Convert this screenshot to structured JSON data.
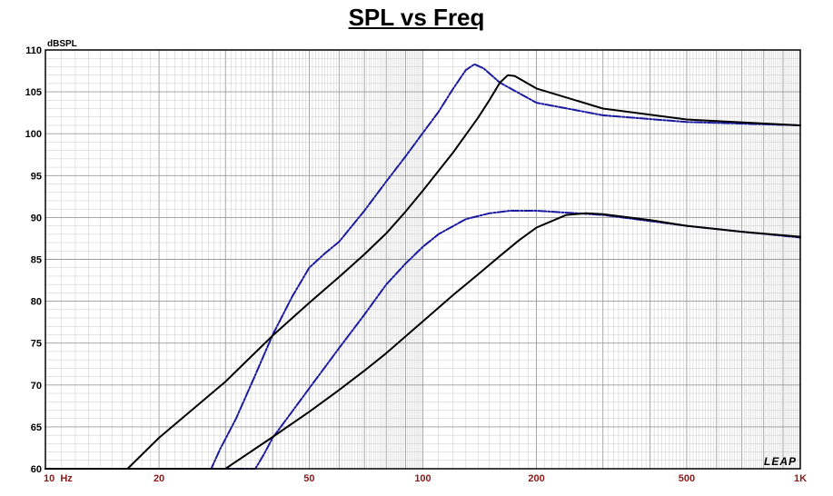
{
  "chart_data": {
    "type": "line",
    "title": "SPL vs Freq",
    "ylabel": "dBSPL",
    "xlabel": "",
    "x_scale": "log",
    "xlim": [
      10,
      1000
    ],
    "ylim": [
      60,
      110
    ],
    "grid": true,
    "brand_mark": "LEAP",
    "colors": {
      "black_series": "#000000",
      "blue_series": "#1a1aa0",
      "grid": "#c8c8c8",
      "x_tick_text": "#8b1a1a"
    },
    "y_ticks": [
      "60",
      "65",
      "70",
      "75",
      "80",
      "85",
      "90",
      "95",
      "100",
      "105",
      "110"
    ],
    "x_ticks": [
      {
        "value": 10,
        "label": "10  Hz"
      },
      {
        "value": 20,
        "label": "20"
      },
      {
        "value": 50,
        "label": "50"
      },
      {
        "value": 100,
        "label": "100"
      },
      {
        "value": 200,
        "label": "200"
      },
      {
        "value": 500,
        "label": "500"
      },
      {
        "value": 1000,
        "label": "1K"
      }
    ],
    "series": [
      {
        "color": "#1a1aa0",
        "dashed": true,
        "points": [
          [
            10,
            60
          ],
          [
            27.5,
            60
          ],
          [
            29,
            62.3
          ],
          [
            32,
            66
          ],
          [
            36,
            71.2
          ],
          [
            40,
            76
          ],
          [
            45,
            80.5
          ],
          [
            50,
            84
          ],
          [
            55,
            85.7
          ],
          [
            60,
            87.1
          ],
          [
            70,
            90.8
          ],
          [
            80,
            94.3
          ],
          [
            90,
            97.3
          ],
          [
            100,
            100.1
          ],
          [
            110,
            102.6
          ],
          [
            120,
            105.3
          ],
          [
            130,
            107.6
          ],
          [
            137,
            108.3
          ],
          [
            145,
            107.8
          ],
          [
            160,
            106.1
          ],
          [
            200,
            103.7
          ],
          [
            300,
            102.2
          ],
          [
            500,
            101.4
          ],
          [
            1000,
            101.0
          ]
        ]
      },
      {
        "color": "#000000",
        "dashed": false,
        "points": [
          [
            10,
            60
          ],
          [
            16.5,
            60
          ],
          [
            20,
            63.7
          ],
          [
            30,
            70.4
          ],
          [
            40,
            75.9
          ],
          [
            50,
            79.8
          ],
          [
            60,
            82.9
          ],
          [
            70,
            85.6
          ],
          [
            80,
            88.1
          ],
          [
            90,
            90.7
          ],
          [
            100,
            93.2
          ],
          [
            120,
            97.7
          ],
          [
            140,
            101.9
          ],
          [
            150,
            104.0
          ],
          [
            160,
            106.1
          ],
          [
            168,
            107.0
          ],
          [
            175,
            106.9
          ],
          [
            200,
            105.4
          ],
          [
            300,
            103.0
          ],
          [
            500,
            101.7
          ],
          [
            1000,
            101.0
          ]
        ]
      },
      {
        "color": "#1a1aa0",
        "dashed": true,
        "points": [
          [
            10,
            60
          ],
          [
            36,
            60
          ],
          [
            38,
            61.8
          ],
          [
            40,
            63.7
          ],
          [
            45,
            66.8
          ],
          [
            50,
            69.6
          ],
          [
            60,
            74.4
          ],
          [
            70,
            78.4
          ],
          [
            80,
            82.0
          ],
          [
            90,
            84.5
          ],
          [
            100,
            86.5
          ],
          [
            110,
            88.0
          ],
          [
            130,
            89.8
          ],
          [
            150,
            90.5
          ],
          [
            170,
            90.8
          ],
          [
            200,
            90.8
          ],
          [
            300,
            90.3
          ],
          [
            500,
            89.0
          ],
          [
            700,
            88.3
          ],
          [
            1000,
            87.6
          ]
        ]
      },
      {
        "color": "#000000",
        "dashed": false,
        "points": [
          [
            10,
            60
          ],
          [
            30,
            60
          ],
          [
            40,
            63.8
          ],
          [
            50,
            66.8
          ],
          [
            60,
            69.4
          ],
          [
            70,
            71.7
          ],
          [
            80,
            73.8
          ],
          [
            100,
            77.6
          ],
          [
            120,
            80.7
          ],
          [
            140,
            83.2
          ],
          [
            160,
            85.4
          ],
          [
            180,
            87.3
          ],
          [
            200,
            88.8
          ],
          [
            240,
            90.3
          ],
          [
            270,
            90.5
          ],
          [
            300,
            90.4
          ],
          [
            400,
            89.7
          ],
          [
            500,
            89.0
          ],
          [
            700,
            88.3
          ],
          [
            1000,
            87.7
          ]
        ]
      }
    ]
  }
}
